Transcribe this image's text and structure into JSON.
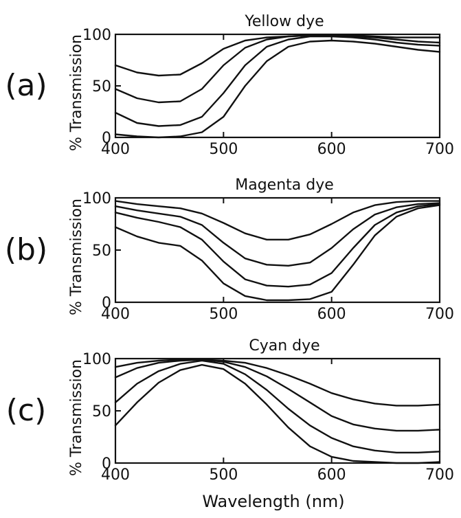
{
  "x_label": "Wavelength (nm)",
  "chart_data": [
    {
      "type": "line",
      "panel_label": "(a)",
      "title": "Yellow dye",
      "ylabel": "% Transmission",
      "xlabel": "",
      "xlim": [
        400,
        700
      ],
      "ylim": [
        0,
        100
      ],
      "x_ticks": [
        "400",
        "500",
        "600",
        "700"
      ],
      "y_ticks": [
        "0",
        "50",
        "100"
      ],
      "grid": false,
      "series": [
        {
          "x": [
            400,
            420,
            440,
            460,
            480,
            500,
            520,
            540,
            560,
            580,
            600,
            620,
            640,
            660,
            680,
            700
          ],
          "values": [
            70,
            63,
            60,
            61,
            72,
            86,
            94,
            97,
            98,
            99,
            99,
            99,
            98,
            97,
            97,
            97
          ]
        },
        {
          "x": [
            400,
            420,
            440,
            460,
            480,
            500,
            520,
            540,
            560,
            580,
            600,
            620,
            640,
            660,
            680,
            700
          ],
          "values": [
            47,
            38,
            34,
            35,
            47,
            70,
            87,
            95,
            98,
            99,
            99,
            98,
            97,
            95,
            93,
            92
          ]
        },
        {
          "x": [
            400,
            420,
            440,
            460,
            480,
            500,
            520,
            540,
            560,
            580,
            600,
            620,
            640,
            660,
            680,
            700
          ],
          "values": [
            24,
            14,
            11,
            12,
            20,
            43,
            70,
            88,
            95,
            98,
            98,
            97,
            95,
            92,
            90,
            89
          ]
        },
        {
          "x": [
            400,
            420,
            440,
            460,
            480,
            500,
            520,
            540,
            560,
            580,
            600,
            620,
            640,
            660,
            680,
            700
          ],
          "values": [
            3,
            1,
            0,
            1,
            5,
            20,
            50,
            74,
            88,
            93,
            94,
            93,
            91,
            88,
            85,
            83
          ]
        }
      ]
    },
    {
      "type": "line",
      "panel_label": "(b)",
      "title": "Magenta dye",
      "ylabel": "% Transmission",
      "xlabel": "",
      "xlim": [
        400,
        700
      ],
      "ylim": [
        0,
        100
      ],
      "x_ticks": [
        "400",
        "500",
        "600",
        "700"
      ],
      "y_ticks": [
        "0",
        "50",
        "100"
      ],
      "grid": false,
      "series": [
        {
          "x": [
            400,
            420,
            440,
            460,
            480,
            500,
            520,
            540,
            560,
            580,
            600,
            620,
            640,
            660,
            680,
            700
          ],
          "values": [
            97,
            94,
            92,
            90,
            85,
            76,
            66,
            60,
            60,
            65,
            75,
            86,
            93,
            96,
            97,
            97
          ]
        },
        {
          "x": [
            400,
            420,
            440,
            460,
            480,
            500,
            520,
            540,
            560,
            580,
            600,
            620,
            640,
            660,
            680,
            700
          ],
          "values": [
            92,
            88,
            85,
            82,
            74,
            57,
            42,
            36,
            35,
            38,
            52,
            70,
            84,
            91,
            94,
            95
          ]
        },
        {
          "x": [
            400,
            420,
            440,
            460,
            480,
            500,
            520,
            540,
            560,
            580,
            600,
            620,
            640,
            660,
            680,
            700
          ],
          "values": [
            86,
            81,
            77,
            72,
            60,
            39,
            22,
            16,
            15,
            17,
            28,
            52,
            74,
            86,
            92,
            94
          ]
        },
        {
          "x": [
            400,
            420,
            440,
            460,
            480,
            500,
            520,
            540,
            560,
            580,
            600,
            620,
            640,
            660,
            680,
            700
          ],
          "values": [
            72,
            63,
            57,
            54,
            40,
            18,
            6,
            2,
            2,
            3,
            10,
            36,
            64,
            82,
            90,
            93
          ]
        }
      ]
    },
    {
      "type": "line",
      "panel_label": "(c)",
      "title": "Cyan dye",
      "ylabel": "% Transmission",
      "xlabel": "Wavelength (nm)",
      "xlim": [
        400,
        700
      ],
      "ylim": [
        0,
        100
      ],
      "x_ticks": [
        "400",
        "500",
        "600",
        "700"
      ],
      "y_ticks": [
        "0",
        "50",
        "100"
      ],
      "grid": false,
      "series": [
        {
          "x": [
            400,
            420,
            440,
            460,
            480,
            500,
            520,
            540,
            560,
            580,
            600,
            620,
            640,
            660,
            680,
            700
          ],
          "values": [
            92,
            96,
            98,
            99,
            99,
            98,
            96,
            91,
            84,
            76,
            67,
            61,
            57,
            55,
            55,
            56
          ]
        },
        {
          "x": [
            400,
            420,
            440,
            460,
            480,
            500,
            520,
            540,
            560,
            580,
            600,
            620,
            640,
            660,
            680,
            700
          ],
          "values": [
            82,
            91,
            96,
            98,
            99,
            97,
            92,
            83,
            71,
            58,
            45,
            37,
            33,
            31,
            31,
            32
          ]
        },
        {
          "x": [
            400,
            420,
            440,
            460,
            480,
            500,
            520,
            540,
            560,
            580,
            600,
            620,
            640,
            660,
            680,
            700
          ],
          "values": [
            58,
            76,
            88,
            95,
            98,
            95,
            85,
            70,
            52,
            36,
            24,
            16,
            12,
            10,
            10,
            11
          ]
        },
        {
          "x": [
            400,
            420,
            440,
            460,
            480,
            500,
            520,
            540,
            560,
            580,
            600,
            620,
            640,
            660,
            680,
            700
          ],
          "values": [
            36,
            58,
            77,
            89,
            94,
            90,
            76,
            56,
            34,
            16,
            6,
            2,
            1,
            0,
            0,
            1
          ]
        }
      ]
    }
  ]
}
